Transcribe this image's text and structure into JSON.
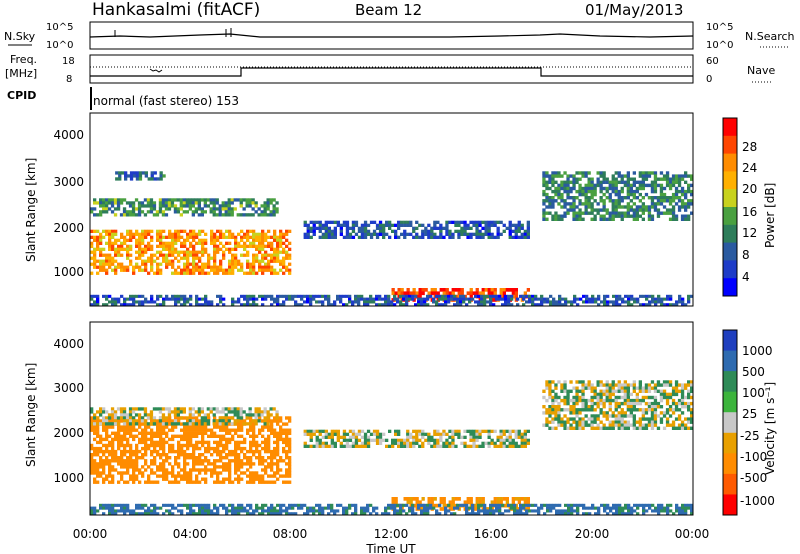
{
  "header": {
    "station": "Hankasalmi (fitACF)",
    "beam": "Beam 12",
    "date": "01/May/2013"
  },
  "strips": {
    "nsky_label": "N.Sky",
    "nsearch_label": "N.Search",
    "freq_label_1": "Freq.",
    "freq_label_2": "[MHz]",
    "nave_label": "Nave",
    "cpid_label": "CPID",
    "cpid_text": "normal (fast stereo) 153",
    "nsky_ticks": [
      "10^5",
      "10^0"
    ],
    "nsearch_ticks": [
      "10^5",
      "10^0"
    ],
    "freq_ticks": [
      "18",
      "8"
    ],
    "nave_ticks": [
      "60",
      "0"
    ]
  },
  "panel_power": {
    "ylabel": "Slant Range [km]",
    "yticks": [
      "4000",
      "3000",
      "2000",
      "1000"
    ],
    "colorbar_label": "Power [dB]",
    "colorbar_ticks": [
      "28",
      "24",
      "20",
      "16",
      "12",
      "8",
      "4"
    ],
    "colorbar_colors": [
      "#ff0000",
      "#ff4500",
      "#ff8c00",
      "#ffb000",
      "#c8d21e",
      "#4aa040",
      "#2e7d5a",
      "#2a5aa0",
      "#1e3cc8",
      "#0000ff"
    ]
  },
  "panel_velocity": {
    "ylabel": "Slant Range [km]",
    "yticks": [
      "4000",
      "3000",
      "2000",
      "1000"
    ],
    "colorbar_label": "Velocity [m s⁻¹]",
    "colorbar_ticks": [
      "1000",
      "500",
      "100",
      "25",
      "-25",
      "-100",
      "-500",
      "-1000"
    ],
    "colorbar_colors": [
      "#1f3fbf",
      "#2e6bb0",
      "#2e8b57",
      "#3cb43c",
      "#c8c8c8",
      "#e8a000",
      "#ff8c00",
      "#ff5a00",
      "#ff0000"
    ]
  },
  "xaxis": {
    "label": "Time UT",
    "ticks": [
      "00:00",
      "04:00",
      "08:00",
      "12:00",
      "16:00",
      "20:00",
      "00:00"
    ]
  },
  "chart_data": [
    {
      "type": "heatmap",
      "title": "Power [dB]",
      "xlabel": "Time UT",
      "ylabel": "Slant Range [km]",
      "xlim_hours": [
        0,
        24
      ],
      "ylim": [
        200,
        4500
      ],
      "clim": [
        0,
        30
      ],
      "bands": [
        {
          "t": [
            0,
            8
          ],
          "r": [
            900,
            1900
          ],
          "level": 22
        },
        {
          "t": [
            0,
            7.5
          ],
          "r": [
            2200,
            2600
          ],
          "level": 11
        },
        {
          "t": [
            1,
            3
          ],
          "r": [
            3000,
            3200
          ],
          "level": 8
        },
        {
          "t": [
            8.5,
            17.5
          ],
          "r": [
            1700,
            2100
          ],
          "level": 6
        },
        {
          "t": [
            12,
            17.5
          ],
          "r": [
            300,
            600
          ],
          "level": 27
        },
        {
          "t": [
            18,
            24
          ],
          "r": [
            2100,
            3200
          ],
          "level": 10
        },
        {
          "t": [
            0,
            24
          ],
          "r": [
            200,
            450
          ],
          "level": 6
        }
      ]
    },
    {
      "type": "heatmap",
      "title": "Velocity [m s⁻¹]",
      "xlabel": "Time UT",
      "ylabel": "Slant Range [km]",
      "xlim_hours": [
        0,
        24
      ],
      "ylim": [
        200,
        4500
      ],
      "clim": [
        -1000,
        1000
      ],
      "bands": [
        {
          "t": [
            0,
            8
          ],
          "r": [
            900,
            2400
          ],
          "level": -200
        },
        {
          "t": [
            0,
            7.5
          ],
          "r": [
            2200,
            2600
          ],
          "level": 0
        },
        {
          "t": [
            8.5,
            17.5
          ],
          "r": [
            1700,
            2100
          ],
          "level": 0
        },
        {
          "t": [
            12,
            17.5
          ],
          "r": [
            300,
            600
          ],
          "level": -150
        },
        {
          "t": [
            18,
            24
          ],
          "r": [
            2100,
            3200
          ],
          "level": 0
        },
        {
          "t": [
            0,
            24
          ],
          "r": [
            200,
            450
          ],
          "level": 150
        }
      ]
    }
  ]
}
